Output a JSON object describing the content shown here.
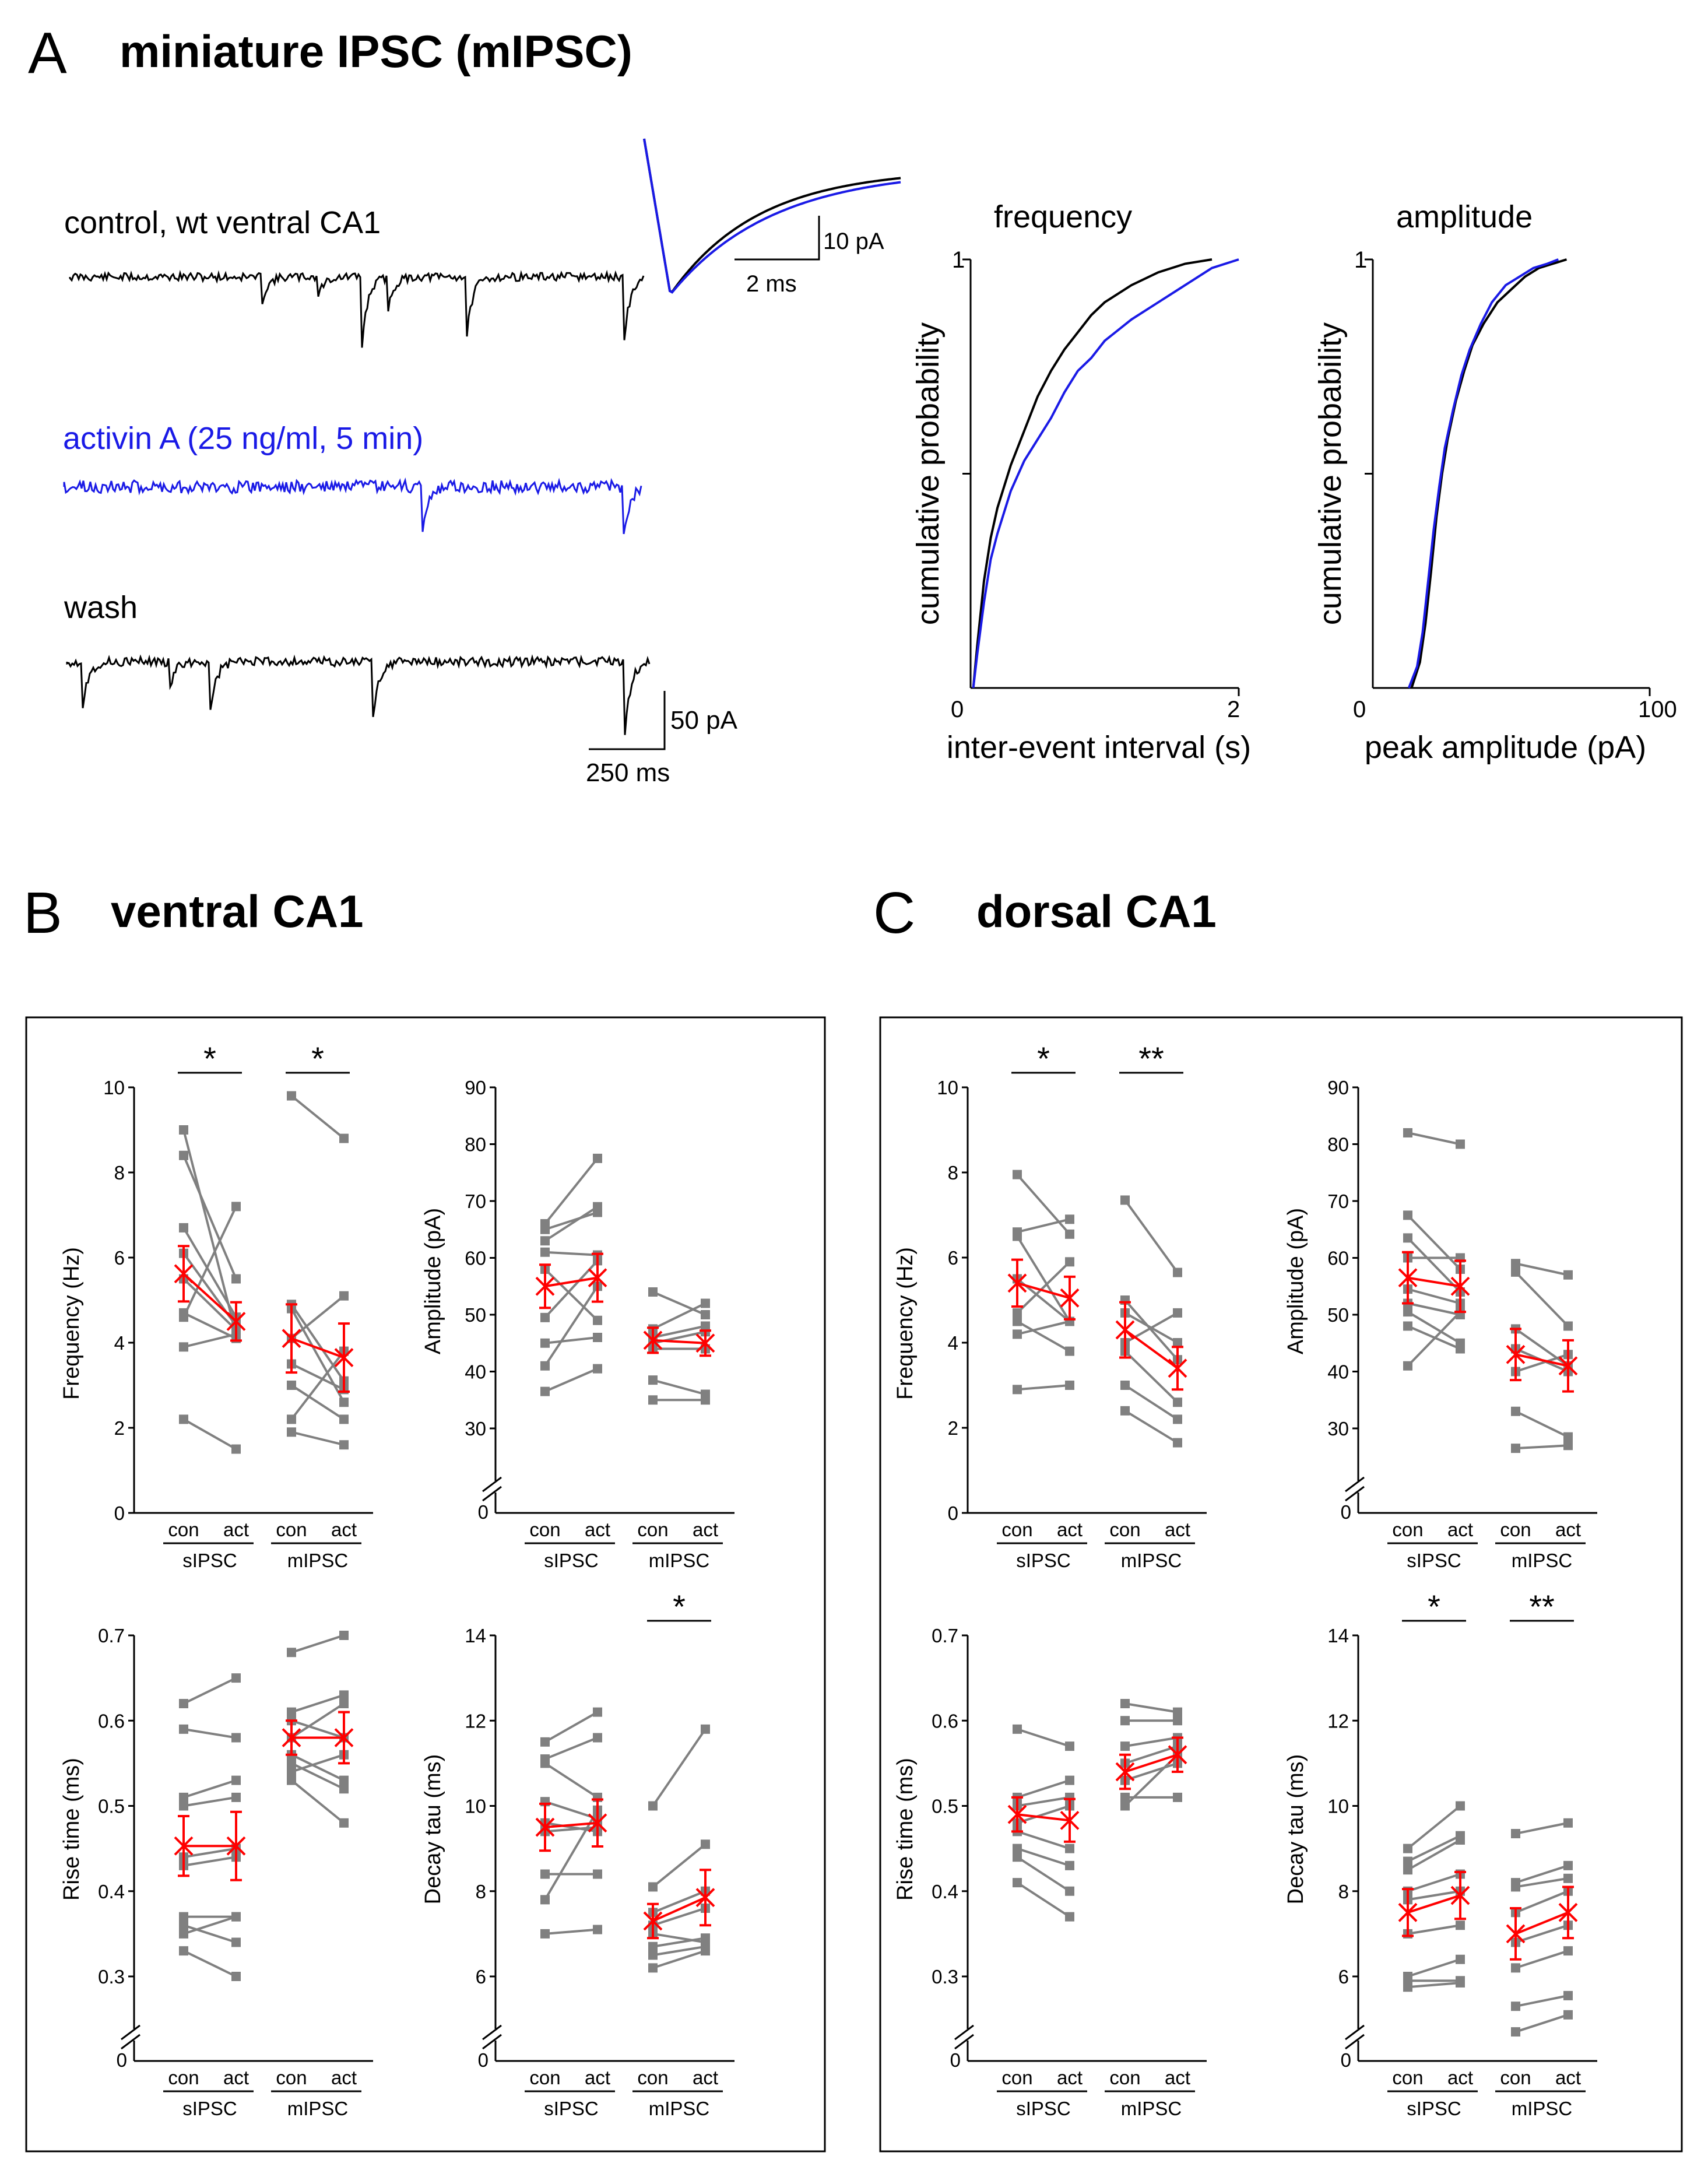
{
  "panel_A": {
    "letter": "A",
    "title": "miniature IPSC (mIPSC)",
    "traces": {
      "control_label": "control, wt ventral CA1",
      "activin_label": "activin A (25 ng/ml, 5 min)",
      "wash_label": "wash",
      "scale_inset_y": "10 pA",
      "scale_inset_x": "2 ms",
      "scale_main_y": "50 pA",
      "scale_main_x": "250 ms",
      "colors": {
        "control": "#000000",
        "activin": "#1a1ae6"
      }
    },
    "freq_plot": {
      "title": "frequency",
      "ylabel": "cumulative probability",
      "xlabel": "inter-event interval (s)",
      "xticks": [
        "0",
        "2"
      ],
      "ytick_top": "1"
    },
    "amp_plot": {
      "title": "amplitude",
      "ylabel": "cumulative probability",
      "xlabel": "peak amplitude (pA)",
      "xticks": [
        "0",
        "100"
      ],
      "ytick_top": "1"
    }
  },
  "panel_B": {
    "letter": "B",
    "title": "ventral CA1"
  },
  "panel_C": {
    "letter": "C",
    "title": "dorsal CA1"
  },
  "common": {
    "con": "con",
    "act": "act",
    "sipsc": "sIPSC",
    "mipsc": "mIPSC",
    "zero": "0",
    "ylabels": {
      "freq": "Frequency (Hz)",
      "amp": "Amplitude (pA)",
      "rise": "Rise time (ms)",
      "decay": "Decay tau (ms)"
    },
    "colors": {
      "individual": "#808080",
      "mean": "#ff0000"
    }
  },
  "chart_data": [
    {
      "type": "line",
      "title": "frequency",
      "xlabel": "inter-event interval (s)",
      "ylabel": "cumulative probability",
      "xlim": [
        0,
        2
      ],
      "ylim": [
        0,
        1
      ],
      "series": [
        {
          "name": "control",
          "color": "#000000",
          "x": [
            0.02,
            0.05,
            0.1,
            0.15,
            0.2,
            0.3,
            0.4,
            0.5,
            0.6,
            0.7,
            0.8,
            0.9,
            1.0,
            1.2,
            1.4,
            1.6,
            1.8
          ],
          "y": [
            0,
            0.1,
            0.25,
            0.35,
            0.42,
            0.52,
            0.6,
            0.68,
            0.74,
            0.79,
            0.83,
            0.87,
            0.9,
            0.94,
            0.97,
            0.99,
            1.0
          ]
        },
        {
          "name": "activin",
          "color": "#1a1ae6",
          "x": [
            0.02,
            0.05,
            0.1,
            0.15,
            0.2,
            0.3,
            0.4,
            0.5,
            0.6,
            0.7,
            0.8,
            0.9,
            1.0,
            1.2,
            1.4,
            1.6,
            1.8,
            2.0
          ],
          "y": [
            0,
            0.08,
            0.2,
            0.3,
            0.36,
            0.46,
            0.53,
            0.58,
            0.63,
            0.69,
            0.74,
            0.77,
            0.81,
            0.86,
            0.9,
            0.94,
            0.98,
            1.0
          ]
        }
      ]
    },
    {
      "type": "line",
      "title": "amplitude",
      "xlabel": "peak amplitude (pA)",
      "ylabel": "cumulative probability",
      "xlim": [
        0,
        100
      ],
      "ylim": [
        0,
        1
      ],
      "series": [
        {
          "name": "control",
          "color": "#000000",
          "x": [
            14,
            17,
            19,
            21,
            23,
            25,
            27,
            30,
            33,
            36,
            40,
            45,
            50,
            55,
            60,
            65,
            70
          ],
          "y": [
            0,
            0.06,
            0.15,
            0.27,
            0.4,
            0.5,
            0.58,
            0.67,
            0.74,
            0.8,
            0.85,
            0.9,
            0.93,
            0.96,
            0.98,
            0.99,
            1.0
          ]
        },
        {
          "name": "activin",
          "color": "#1a1ae6",
          "x": [
            13,
            16,
            18,
            20,
            22,
            24,
            26,
            29,
            32,
            35,
            39,
            43,
            48,
            53,
            58,
            63,
            67
          ],
          "y": [
            0,
            0.05,
            0.13,
            0.25,
            0.37,
            0.47,
            0.56,
            0.65,
            0.73,
            0.79,
            0.85,
            0.9,
            0.94,
            0.96,
            0.98,
            0.99,
            1.0
          ]
        }
      ]
    },
    {
      "id": "B_freq",
      "type": "line",
      "title": "ventral CA1 frequency",
      "ylabel": "Frequency (Hz)",
      "ylim": [
        0,
        10
      ],
      "yticks": [
        0,
        2,
        4,
        6,
        8,
        10
      ],
      "broken_axis": false,
      "significance": [
        "*",
        "*"
      ],
      "groups": [
        {
          "name": "sIPSC",
          "pairs": [
            [
              9.0,
              4.2
            ],
            [
              8.4,
              5.5
            ],
            [
              6.7,
              4.6
            ],
            [
              6.1,
              4.4
            ],
            [
              5.5,
              4.3
            ],
            [
              4.7,
              4.1
            ],
            [
              3.9,
              4.2
            ],
            [
              2.2,
              1.5
            ],
            [
              4.6,
              7.2
            ]
          ],
          "mean": [
            5.62,
            4.5
          ],
          "sem": [
            0.65,
            0.45
          ]
        },
        {
          "name": "mIPSC",
          "pairs": [
            [
              9.8,
              8.8
            ],
            [
              4.9,
              3.1
            ],
            [
              4.8,
              2.6
            ],
            [
              4.1,
              5.1
            ],
            [
              3.5,
              2.9
            ],
            [
              3.0,
              2.2
            ],
            [
              2.2,
              3.8
            ],
            [
              1.9,
              1.6
            ]
          ],
          "mean": [
            4.1,
            3.65
          ],
          "sem": [
            0.8,
            0.8
          ]
        }
      ]
    },
    {
      "id": "B_amp",
      "type": "line",
      "title": "ventral CA1 amplitude",
      "ylabel": "Amplitude (pA)",
      "ylim": [
        30,
        90
      ],
      "yticks": [
        30,
        40,
        50,
        60,
        70,
        80,
        90
      ],
      "broken_axis": true,
      "significance": [],
      "groups": [
        {
          "name": "sIPSC",
          "pairs": [
            [
              66,
              77.5
            ],
            [
              65,
              68
            ],
            [
              63,
              69
            ],
            [
              61,
              60.5
            ],
            [
              58,
              49
            ],
            [
              49.5,
              59.5
            ],
            [
              45,
              46
            ],
            [
              41,
              55
            ],
            [
              36.5,
              40.5
            ]
          ],
          "mean": [
            55,
            56.5
          ],
          "sem": [
            3.8,
            4.2
          ]
        },
        {
          "name": "mIPSC",
          "pairs": [
            [
              54,
              50
            ],
            [
              47.5,
              52
            ],
            [
              46,
              48
            ],
            [
              45,
              47
            ],
            [
              44,
              44
            ],
            [
              38.5,
              36
            ],
            [
              35,
              35
            ]
          ],
          "mean": [
            45.5,
            45
          ],
          "sem": [
            2.2,
            2.2
          ]
        }
      ]
    },
    {
      "id": "B_rise",
      "type": "line",
      "title": "ventral CA1 rise time",
      "ylabel": "Rise time (ms)",
      "ylim": [
        0.3,
        0.7
      ],
      "yticks": [
        0.3,
        0.4,
        0.5,
        0.6,
        0.7
      ],
      "broken_axis": true,
      "significance": [],
      "groups": [
        {
          "name": "sIPSC",
          "pairs": [
            [
              0.62,
              0.65
            ],
            [
              0.59,
              0.58
            ],
            [
              0.51,
              0.53
            ],
            [
              0.5,
              0.51
            ],
            [
              0.44,
              0.45
            ],
            [
              0.43,
              0.44
            ],
            [
              0.37,
              0.37
            ],
            [
              0.36,
              0.34
            ],
            [
              0.35,
              0.37
            ],
            [
              0.33,
              0.3
            ]
          ],
          "mean": [
            0.453,
            0.453
          ],
          "sem": [
            0.035,
            0.04
          ]
        },
        {
          "name": "mIPSC",
          "pairs": [
            [
              0.68,
              0.7
            ],
            [
              0.61,
              0.63
            ],
            [
              0.6,
              0.58
            ],
            [
              0.58,
              0.62
            ],
            [
              0.56,
              0.53
            ],
            [
              0.55,
              0.52
            ],
            [
              0.54,
              0.56
            ],
            [
              0.53,
              0.48
            ]
          ],
          "mean": [
            0.58,
            0.58
          ],
          "sem": [
            0.02,
            0.03
          ]
        }
      ]
    },
    {
      "id": "B_decay",
      "type": "line",
      "title": "ventral CA1 decay tau",
      "ylabel": "Decay tau (ms)",
      "ylim": [
        6,
        14
      ],
      "yticks": [
        6,
        8,
        10,
        12,
        14
      ],
      "broken_axis": true,
      "significance": [
        "",
        "*"
      ],
      "groups": [
        {
          "name": "sIPSC",
          "pairs": [
            [
              11.5,
              12.2
            ],
            [
              11.1,
              11.6
            ],
            [
              11.0,
              10.2
            ],
            [
              10.1,
              9.7
            ],
            [
              9.6,
              9.4
            ],
            [
              9.4,
              9.5
            ],
            [
              8.4,
              8.4
            ],
            [
              7.8,
              9.9
            ],
            [
              7.0,
              7.1
            ]
          ],
          "mean": [
            9.5,
            9.6
          ],
          "sem": [
            0.55,
            0.55
          ]
        },
        {
          "name": "mIPSC",
          "pairs": [
            [
              10.0,
              11.8
            ],
            [
              8.1,
              9.1
            ],
            [
              7.5,
              8.0
            ],
            [
              7.2,
              7.6
            ],
            [
              7.0,
              6.8
            ],
            [
              6.7,
              6.9
            ],
            [
              6.5,
              6.7
            ],
            [
              6.2,
              6.6
            ]
          ],
          "mean": [
            7.3,
            7.85
          ],
          "sem": [
            0.4,
            0.65
          ]
        }
      ]
    },
    {
      "id": "C_freq",
      "type": "line",
      "title": "dorsal CA1 frequency",
      "ylabel": "Frequency (Hz)",
      "ylim": [
        0,
        10
      ],
      "yticks": [
        0,
        2,
        4,
        6,
        8,
        10
      ],
      "broken_axis": false,
      "significance": [
        "*",
        "**"
      ],
      "groups": [
        {
          "name": "sIPSC",
          "pairs": [
            [
              7.95,
              6.55
            ],
            [
              6.6,
              6.9
            ],
            [
              6.5,
              4.5
            ],
            [
              5.5,
              4.5
            ],
            [
              4.7,
              5.9
            ],
            [
              4.5,
              3.8
            ],
            [
              4.2,
              4.5
            ],
            [
              2.9,
              3.0
            ]
          ],
          "mean": [
            5.4,
            5.05
          ],
          "sem": [
            0.55,
            0.5
          ]
        },
        {
          "name": "mIPSC",
          "pairs": [
            [
              7.35,
              5.65
            ],
            [
              5.0,
              3.6
            ],
            [
              4.7,
              4.0
            ],
            [
              4.0,
              4.7
            ],
            [
              3.8,
              2.6
            ],
            [
              3.0,
              2.2
            ],
            [
              2.4,
              1.65
            ]
          ],
          "mean": [
            4.3,
            3.4
          ],
          "sem": [
            0.65,
            0.5
          ]
        }
      ]
    },
    {
      "id": "C_amp",
      "type": "line",
      "title": "dorsal CA1 amplitude",
      "ylabel": "Amplitude (pA)",
      "ylim": [
        30,
        90
      ],
      "yticks": [
        30,
        40,
        50,
        60,
        70,
        80,
        90
      ],
      "broken_axis": true,
      "significance": [],
      "groups": [
        {
          "name": "sIPSC",
          "pairs": [
            [
              82,
              80
            ],
            [
              67.5,
              58
            ],
            [
              63.5,
              54
            ],
            [
              60,
              60
            ],
            [
              54.5,
              52
            ],
            [
              52,
              50
            ],
            [
              50.5,
              45
            ],
            [
              48,
              44
            ],
            [
              41,
              50.5
            ]
          ],
          "mean": [
            56.5,
            55
          ],
          "sem": [
            4.5,
            4.5
          ]
        },
        {
          "name": "mIPSC",
          "pairs": [
            [
              59,
              57
            ],
            [
              57.5,
              48
            ],
            [
              47.5,
              41
            ],
            [
              44,
              40
            ],
            [
              40,
              43
            ],
            [
              33,
              28.5
            ],
            [
              26.5,
              27
            ]
          ],
          "mean": [
            43,
            41
          ],
          "sem": [
            4.5,
            4.5
          ]
        }
      ]
    },
    {
      "id": "C_rise",
      "type": "line",
      "title": "dorsal CA1 rise time",
      "ylabel": "Rise time (ms)",
      "ylim": [
        0.3,
        0.7
      ],
      "yticks": [
        0.3,
        0.4,
        0.5,
        0.6,
        0.7
      ],
      "broken_axis": true,
      "significance": [],
      "groups": [
        {
          "name": "sIPSC",
          "pairs": [
            [
              0.59,
              0.57
            ],
            [
              0.51,
              0.53
            ],
            [
              0.5,
              0.51
            ],
            [
              0.48,
              0.5
            ],
            [
              0.47,
              0.45
            ],
            [
              0.45,
              0.43
            ],
            [
              0.44,
              0.4
            ],
            [
              0.41,
              0.37
            ]
          ],
          "mean": [
            0.49,
            0.483
          ],
          "sem": [
            0.02,
            0.025
          ]
        },
        {
          "name": "mIPSC",
          "pairs": [
            [
              0.62,
              0.61
            ],
            [
              0.6,
              0.6
            ],
            [
              0.57,
              0.58
            ],
            [
              0.55,
              0.57
            ],
            [
              0.53,
              0.55
            ],
            [
              0.51,
              0.51
            ],
            [
              0.5,
              0.56
            ]
          ],
          "mean": [
            0.54,
            0.56
          ],
          "sem": [
            0.02,
            0.02
          ]
        }
      ]
    },
    {
      "id": "C_decay",
      "type": "line",
      "title": "dorsal CA1 decay tau",
      "ylabel": "Decay tau (ms)",
      "ylim": [
        6,
        14
      ],
      "yticks": [
        6,
        8,
        10,
        12,
        14
      ],
      "broken_axis": true,
      "significance": [
        "*",
        "**"
      ],
      "groups": [
        {
          "name": "sIPSC",
          "pairs": [
            [
              9.0,
              10.0
            ],
            [
              8.7,
              9.3
            ],
            [
              8.5,
              9.2
            ],
            [
              8.0,
              8.4
            ],
            [
              7.8,
              8.0
            ],
            [
              7.0,
              7.2
            ],
            [
              6.0,
              6.4
            ],
            [
              5.9,
              5.9
            ],
            [
              5.75,
              5.85
            ]
          ],
          "mean": [
            7.5,
            7.9
          ],
          "sem": [
            0.55,
            0.55
          ]
        },
        {
          "name": "mIPSC",
          "pairs": [
            [
              9.35,
              9.6
            ],
            [
              8.2,
              8.6
            ],
            [
              8.1,
              8.3
            ],
            [
              7.5,
              8.0
            ],
            [
              6.8,
              7.2
            ],
            [
              6.2,
              6.6
            ],
            [
              5.3,
              5.55
            ],
            [
              4.7,
              5.1
            ]
          ],
          "mean": [
            7.0,
            7.5
          ],
          "sem": [
            0.6,
            0.6
          ]
        }
      ]
    }
  ]
}
